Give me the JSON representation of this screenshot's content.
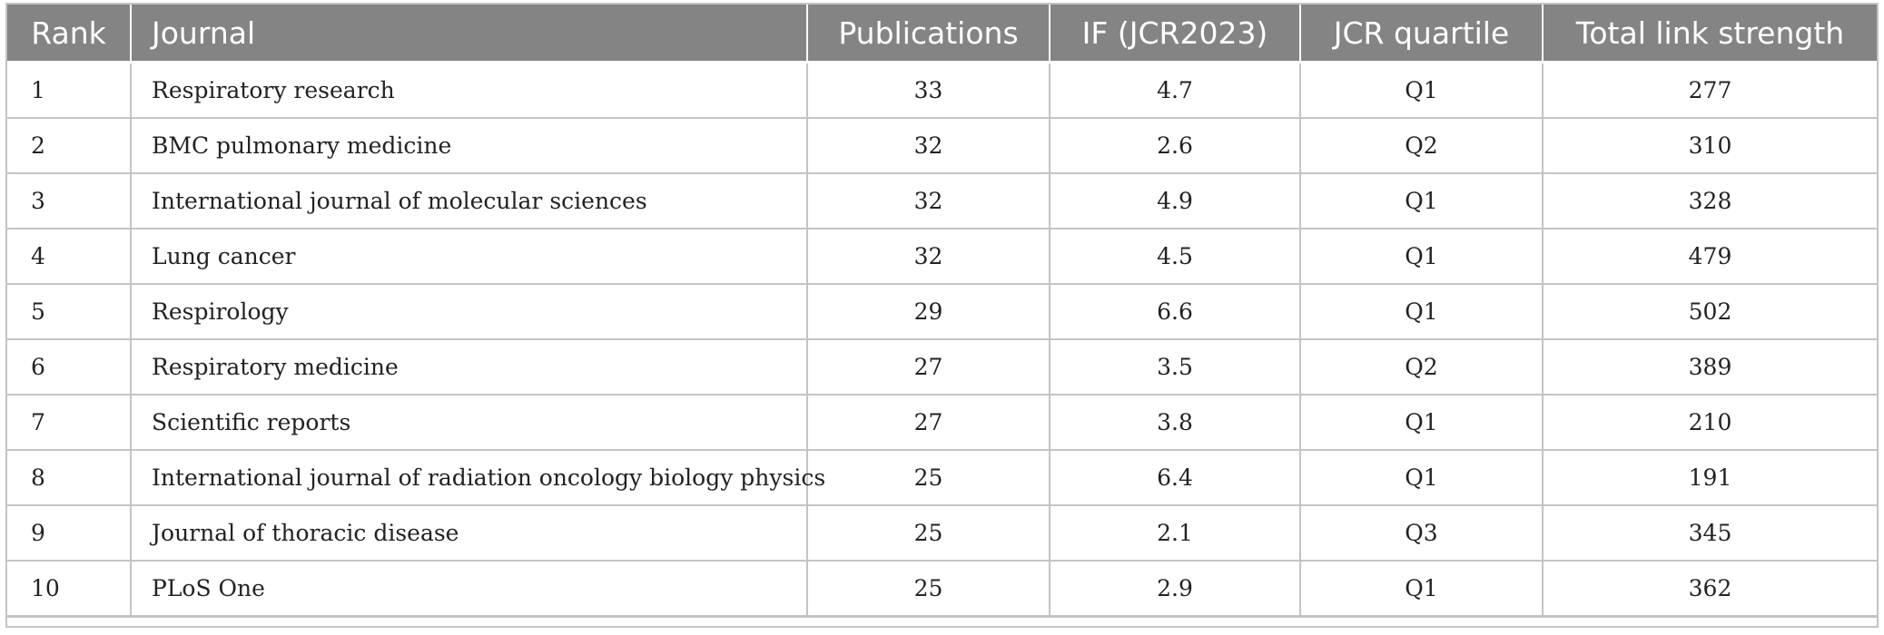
{
  "table": {
    "headers": {
      "rank": "Rank",
      "journal": "Journal",
      "publications": "Publications",
      "impact_factor": "IF (JCR2023)",
      "jcr_quartile": "JCR quartile",
      "total_link_strength": "Total link strength"
    },
    "rows": [
      {
        "rank": "1",
        "journal": "Respiratory research",
        "publications": "33",
        "impact_factor": "4.7",
        "jcr_quartile": "Q1",
        "total_link_strength": "277"
      },
      {
        "rank": "2",
        "journal": "BMC pulmonary medicine",
        "publications": "32",
        "impact_factor": "2.6",
        "jcr_quartile": "Q2",
        "total_link_strength": "310"
      },
      {
        "rank": "3",
        "journal": "International journal of molecular sciences",
        "publications": "32",
        "impact_factor": "4.9",
        "jcr_quartile": "Q1",
        "total_link_strength": "328"
      },
      {
        "rank": "4",
        "journal": "Lung cancer",
        "publications": "32",
        "impact_factor": "4.5",
        "jcr_quartile": "Q1",
        "total_link_strength": "479"
      },
      {
        "rank": "5",
        "journal": "Respirology",
        "publications": "29",
        "impact_factor": "6.6",
        "jcr_quartile": "Q1",
        "total_link_strength": "502"
      },
      {
        "rank": "6",
        "journal": "Respiratory medicine",
        "publications": "27",
        "impact_factor": "3.5",
        "jcr_quartile": "Q2",
        "total_link_strength": "389"
      },
      {
        "rank": "7",
        "journal": "Scientific reports",
        "publications": "27",
        "impact_factor": "3.8",
        "jcr_quartile": "Q1",
        "total_link_strength": "210"
      },
      {
        "rank": "8",
        "journal": "International journal of radiation oncology biology physics",
        "publications": "25",
        "impact_factor": "6.4",
        "jcr_quartile": "Q1",
        "total_link_strength": "191"
      },
      {
        "rank": "9",
        "journal": "Journal of thoracic disease",
        "publications": "25",
        "impact_factor": "2.1",
        "jcr_quartile": "Q3",
        "total_link_strength": "345"
      },
      {
        "rank": "10",
        "journal": "PLoS One",
        "publications": "25",
        "impact_factor": "2.9",
        "jcr_quartile": "Q1",
        "total_link_strength": "362"
      }
    ]
  },
  "colors": {
    "header_background": "#848484",
    "header_text": "#ffffff",
    "grid_line": "#c4c4c4",
    "body_text": "#222222"
  }
}
